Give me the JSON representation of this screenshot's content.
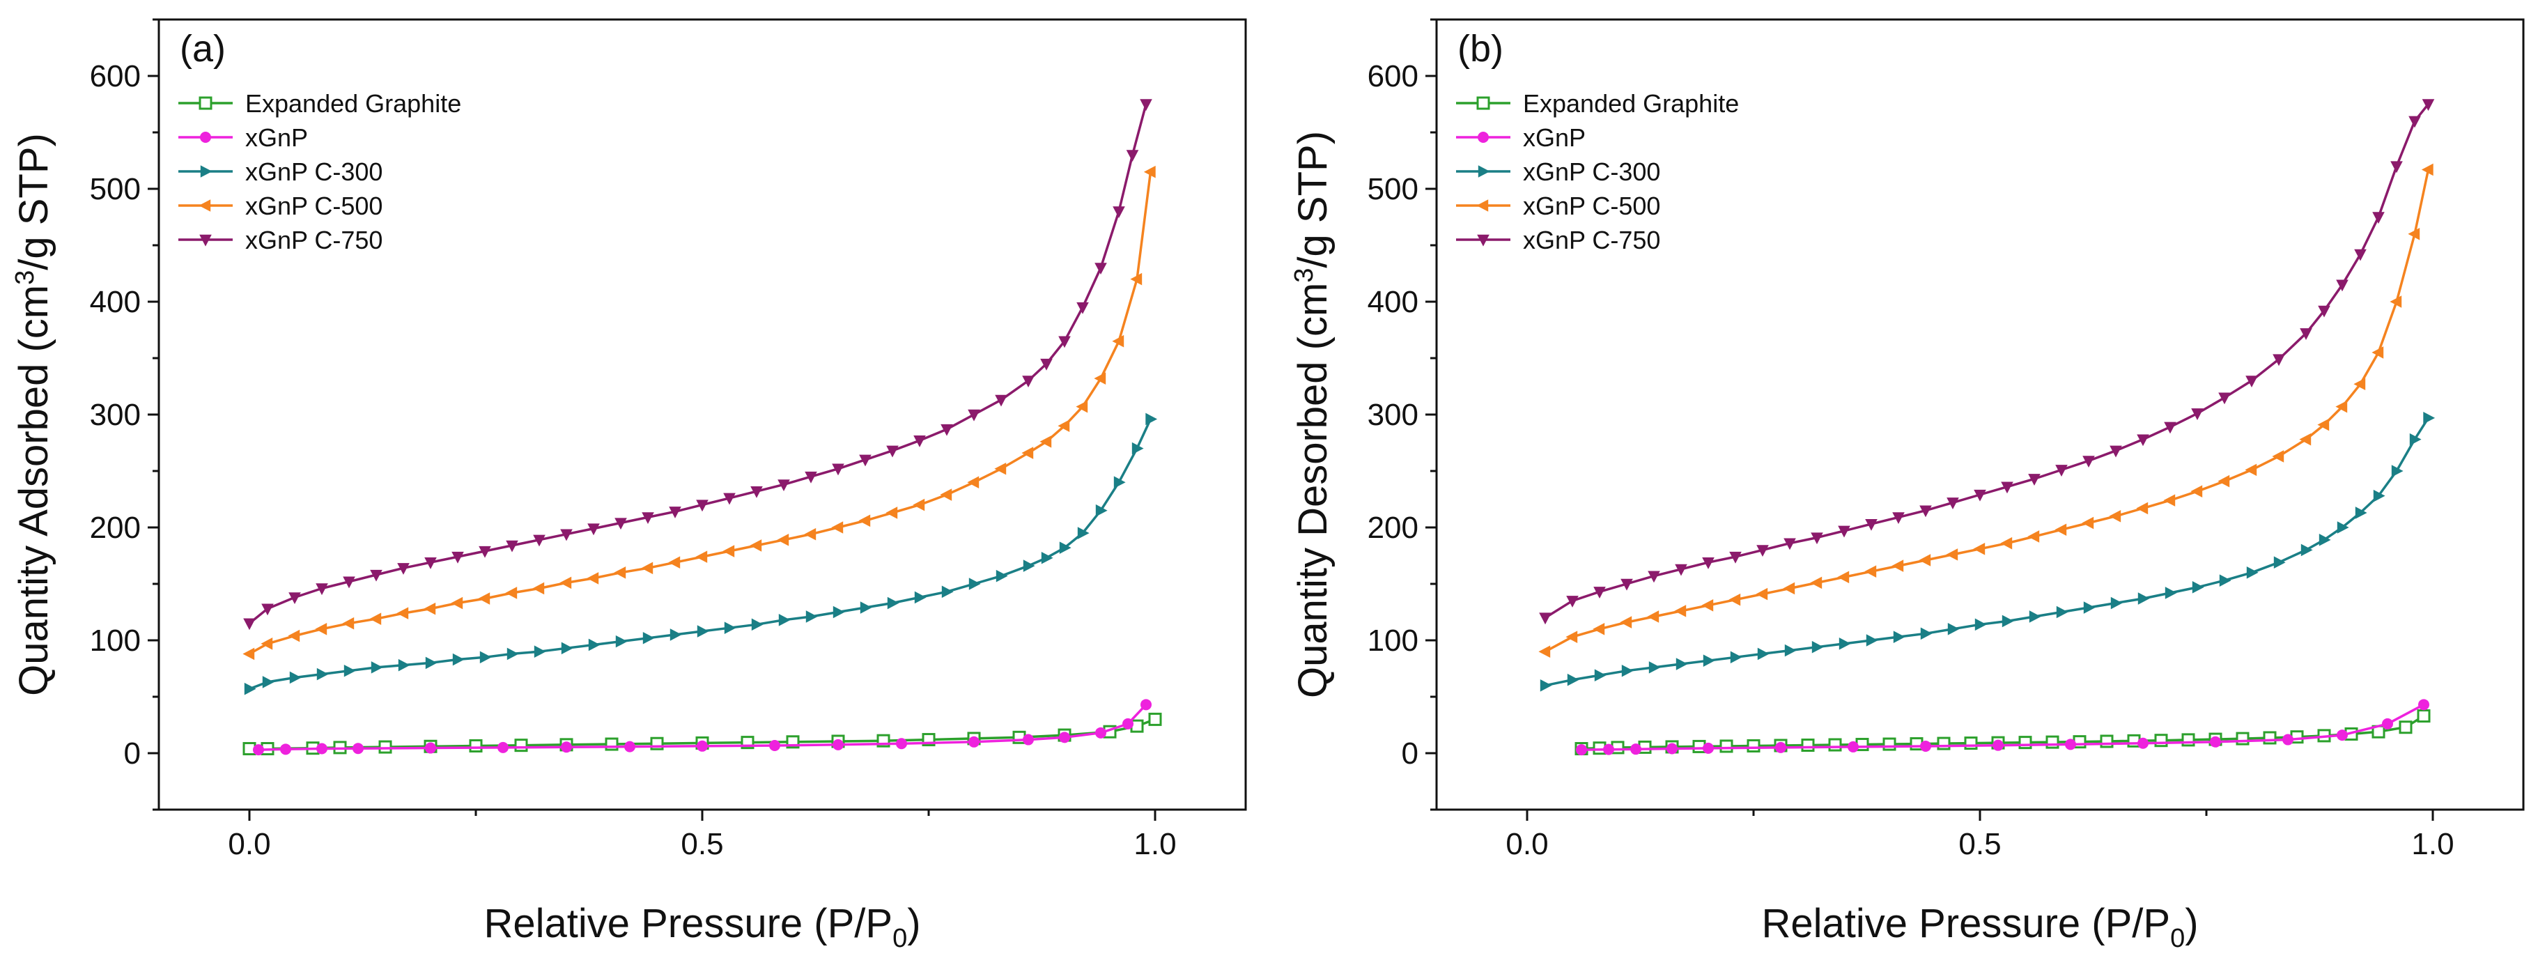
{
  "chart_data": [
    {
      "type": "line",
      "panel_label": "(a)",
      "xlabel": "Relative Pressure (P/P",
      "xlabel_sub": "0",
      "xlabel_end": ")",
      "ylabel": "Quantity Adsorbed (cm",
      "ylabel_sup": "3",
      "ylabel_end": "/g STP)",
      "xlim": [
        -0.1,
        1.1
      ],
      "ylim": [
        -50,
        650
      ],
      "xticks": [
        0.0,
        0.5,
        1.0
      ],
      "xtick_labels": [
        "0.0",
        "0.5",
        "1.0"
      ],
      "yticks": [
        0,
        100,
        200,
        300,
        400,
        500,
        600
      ],
      "ytick_labels": [
        "0",
        "100",
        "200",
        "300",
        "400",
        "500",
        "600"
      ],
      "legend_position": "top-left",
      "series": [
        {
          "name": "Expanded Graphite",
          "color": "#2ca02c",
          "marker": "square-open",
          "x": [
            0.0,
            0.02,
            0.07,
            0.1,
            0.15,
            0.2,
            0.25,
            0.3,
            0.35,
            0.4,
            0.45,
            0.5,
            0.55,
            0.6,
            0.65,
            0.7,
            0.75,
            0.8,
            0.85,
            0.9,
            0.95,
            0.98,
            1.0
          ],
          "y": [
            4,
            4,
            4.5,
            5,
            5.5,
            6,
            6.5,
            7,
            7.5,
            8,
            8.5,
            9,
            9.5,
            10,
            10.5,
            11,
            12,
            13,
            14,
            16,
            19,
            24,
            30
          ]
        },
        {
          "name": "xGnP",
          "color": "#ee22dd",
          "marker": "circle",
          "x": [
            0.01,
            0.04,
            0.08,
            0.12,
            0.2,
            0.28,
            0.35,
            0.42,
            0.5,
            0.58,
            0.65,
            0.72,
            0.8,
            0.86,
            0.9,
            0.94,
            0.97,
            0.99
          ],
          "y": [
            3,
            3.5,
            4,
            4.2,
            4.6,
            5,
            5.4,
            5.8,
            6.3,
            6.8,
            7.5,
            8.5,
            10,
            12,
            14,
            18,
            26,
            43
          ]
        },
        {
          "name": "xGnP C-300",
          "color": "#1a7f86",
          "marker": "triangle-right",
          "x": [
            0.0,
            0.02,
            0.05,
            0.08,
            0.11,
            0.14,
            0.17,
            0.2,
            0.23,
            0.26,
            0.29,
            0.32,
            0.35,
            0.38,
            0.41,
            0.44,
            0.47,
            0.5,
            0.53,
            0.56,
            0.59,
            0.62,
            0.65,
            0.68,
            0.71,
            0.74,
            0.77,
            0.8,
            0.83,
            0.86,
            0.88,
            0.9,
            0.92,
            0.94,
            0.96,
            0.98,
            0.995
          ],
          "y": [
            57,
            63,
            67,
            70,
            73,
            76,
            78,
            80,
            83,
            85,
            88,
            90,
            93,
            96,
            99,
            102,
            105,
            108,
            111,
            114,
            118,
            121,
            125,
            129,
            133,
            138,
            143,
            150,
            157,
            166,
            173,
            182,
            195,
            215,
            240,
            270,
            296
          ]
        },
        {
          "name": "xGnP C-500",
          "color": "#f5831f",
          "marker": "triangle-left",
          "x": [
            0.0,
            0.02,
            0.05,
            0.08,
            0.11,
            0.14,
            0.17,
            0.2,
            0.23,
            0.26,
            0.29,
            0.32,
            0.35,
            0.38,
            0.41,
            0.44,
            0.47,
            0.5,
            0.53,
            0.56,
            0.59,
            0.62,
            0.65,
            0.68,
            0.71,
            0.74,
            0.77,
            0.8,
            0.83,
            0.86,
            0.88,
            0.9,
            0.92,
            0.94,
            0.96,
            0.98,
            0.995
          ],
          "y": [
            88,
            97,
            104,
            110,
            115,
            119,
            124,
            128,
            133,
            137,
            142,
            146,
            151,
            155,
            160,
            164,
            169,
            174,
            179,
            184,
            189,
            194,
            200,
            206,
            213,
            220,
            229,
            240,
            252,
            266,
            276,
            290,
            307,
            332,
            365,
            420,
            515
          ]
        },
        {
          "name": "xGnP C-750",
          "color": "#8b1a6b",
          "marker": "triangle-down",
          "x": [
            0.0,
            0.02,
            0.05,
            0.08,
            0.11,
            0.14,
            0.17,
            0.2,
            0.23,
            0.26,
            0.29,
            0.32,
            0.35,
            0.38,
            0.41,
            0.44,
            0.47,
            0.5,
            0.53,
            0.56,
            0.59,
            0.62,
            0.65,
            0.68,
            0.71,
            0.74,
            0.77,
            0.8,
            0.83,
            0.86,
            0.88,
            0.9,
            0.92,
            0.94,
            0.96,
            0.975,
            0.99
          ],
          "y": [
            115,
            128,
            138,
            146,
            152,
            158,
            164,
            169,
            174,
            179,
            184,
            189,
            194,
            199,
            204,
            209,
            214,
            220,
            226,
            232,
            238,
            245,
            252,
            260,
            268,
            277,
            287,
            300,
            313,
            330,
            345,
            365,
            395,
            430,
            480,
            530,
            575
          ]
        }
      ]
    },
    {
      "type": "line",
      "panel_label": "(b)",
      "xlabel": "Relative Pressure (P/P",
      "xlabel_sub": "0",
      "xlabel_end": ")",
      "ylabel": "Quantity Desorbed (cm",
      "ylabel_sup": "3",
      "ylabel_end": "/g STP)",
      "xlim": [
        -0.1,
        1.1
      ],
      "ylim": [
        -50,
        650
      ],
      "xticks": [
        0.0,
        0.5,
        1.0
      ],
      "xtick_labels": [
        "0.0",
        "0.5",
        "1.0"
      ],
      "yticks": [
        0,
        100,
        200,
        300,
        400,
        500,
        600
      ],
      "ytick_labels": [
        "0",
        "100",
        "200",
        "300",
        "400",
        "500",
        "600"
      ],
      "legend_position": "top-left",
      "series": [
        {
          "name": "Expanded Graphite",
          "color": "#2ca02c",
          "marker": "square-open",
          "x": [
            0.06,
            0.08,
            0.1,
            0.13,
            0.16,
            0.19,
            0.22,
            0.25,
            0.28,
            0.31,
            0.34,
            0.37,
            0.4,
            0.43,
            0.46,
            0.49,
            0.52,
            0.55,
            0.58,
            0.61,
            0.64,
            0.67,
            0.7,
            0.73,
            0.76,
            0.79,
            0.82,
            0.85,
            0.88,
            0.91,
            0.94,
            0.97,
            0.99
          ],
          "y": [
            4,
            4.5,
            5,
            5.3,
            5.6,
            5.9,
            6.2,
            6.5,
            6.8,
            7.1,
            7.4,
            7.7,
            8,
            8.3,
            8.6,
            8.9,
            9.2,
            9.5,
            9.8,
            10.1,
            10.5,
            10.9,
            11.3,
            11.8,
            12.3,
            12.9,
            13.6,
            14.4,
            15.5,
            17,
            19,
            23,
            33
          ]
        },
        {
          "name": "xGnP",
          "color": "#ee22dd",
          "marker": "circle",
          "x": [
            0.06,
            0.09,
            0.12,
            0.16,
            0.2,
            0.28,
            0.36,
            0.44,
            0.52,
            0.6,
            0.68,
            0.76,
            0.84,
            0.9,
            0.95,
            0.99
          ],
          "y": [
            3,
            3.3,
            3.6,
            4,
            4.4,
            5,
            5.6,
            6.2,
            7,
            7.8,
            8.8,
            10,
            12,
            16,
            26,
            43
          ]
        },
        {
          "name": "xGnP C-300",
          "color": "#1a7f86",
          "marker": "triangle-right",
          "x": [
            0.02,
            0.05,
            0.08,
            0.11,
            0.14,
            0.17,
            0.2,
            0.23,
            0.26,
            0.29,
            0.32,
            0.35,
            0.38,
            0.41,
            0.44,
            0.47,
            0.5,
            0.53,
            0.56,
            0.59,
            0.62,
            0.65,
            0.68,
            0.71,
            0.74,
            0.77,
            0.8,
            0.83,
            0.86,
            0.88,
            0.9,
            0.92,
            0.94,
            0.96,
            0.98,
            0.995
          ],
          "y": [
            60,
            65,
            69,
            73,
            76,
            79,
            82,
            85,
            88,
            91,
            94,
            97,
            100,
            103,
            106,
            110,
            114,
            117,
            121,
            125,
            129,
            133,
            137,
            142,
            147,
            153,
            160,
            169,
            180,
            189,
            200,
            213,
            228,
            250,
            278,
            297
          ]
        },
        {
          "name": "xGnP C-500",
          "color": "#f5831f",
          "marker": "triangle-left",
          "x": [
            0.02,
            0.05,
            0.08,
            0.11,
            0.14,
            0.17,
            0.2,
            0.23,
            0.26,
            0.29,
            0.32,
            0.35,
            0.38,
            0.41,
            0.44,
            0.47,
            0.5,
            0.53,
            0.56,
            0.59,
            0.62,
            0.65,
            0.68,
            0.71,
            0.74,
            0.77,
            0.8,
            0.83,
            0.86,
            0.88,
            0.9,
            0.92,
            0.94,
            0.96,
            0.98,
            0.995
          ],
          "y": [
            90,
            103,
            110,
            116,
            121,
            126,
            131,
            136,
            141,
            146,
            151,
            156,
            161,
            166,
            171,
            176,
            181,
            186,
            192,
            198,
            204,
            210,
            217,
            224,
            232,
            241,
            251,
            263,
            278,
            291,
            307,
            327,
            355,
            400,
            460,
            517
          ]
        },
        {
          "name": "xGnP C-750",
          "color": "#8b1a6b",
          "marker": "triangle-down",
          "x": [
            0.02,
            0.05,
            0.08,
            0.11,
            0.14,
            0.17,
            0.2,
            0.23,
            0.26,
            0.29,
            0.32,
            0.35,
            0.38,
            0.41,
            0.44,
            0.47,
            0.5,
            0.53,
            0.56,
            0.59,
            0.62,
            0.65,
            0.68,
            0.71,
            0.74,
            0.77,
            0.8,
            0.83,
            0.86,
            0.88,
            0.9,
            0.92,
            0.94,
            0.96,
            0.98,
            0.995
          ],
          "y": [
            120,
            135,
            143,
            150,
            157,
            163,
            169,
            174,
            180,
            186,
            191,
            197,
            203,
            209,
            215,
            222,
            229,
            236,
            243,
            251,
            259,
            268,
            278,
            289,
            301,
            315,
            330,
            349,
            372,
            392,
            415,
            442,
            475,
            520,
            560,
            575
          ]
        }
      ]
    }
  ]
}
